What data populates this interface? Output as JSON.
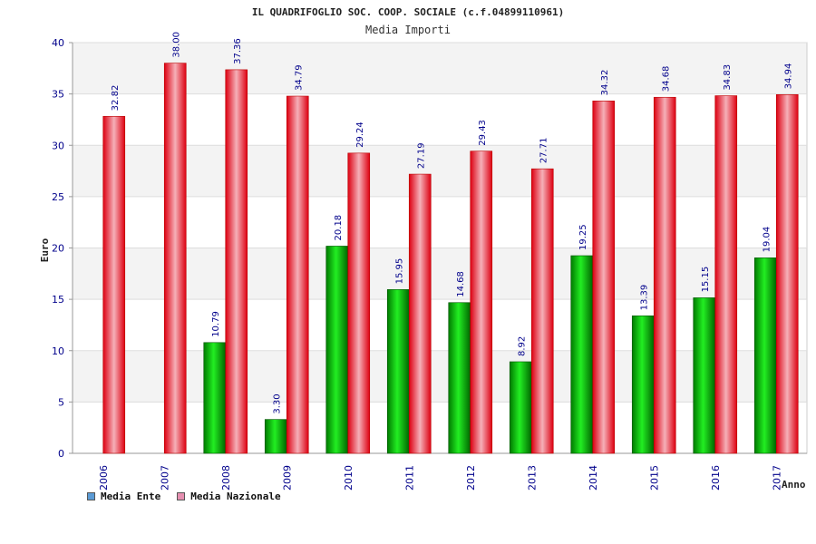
{
  "chart_data": {
    "type": "bar",
    "title": "IL QUADRIFOGLIO SOC. COOP. SOCIALE (c.f.04899110961)",
    "subtitle": "Media Importi",
    "xlabel": "Anno",
    "ylabel": "Euro",
    "ylim": [
      0,
      40
    ],
    "yticks": [
      "0",
      "5",
      "10",
      "15",
      "20",
      "25",
      "30",
      "35",
      "40"
    ],
    "categories": [
      "2006",
      "2007",
      "2008",
      "2009",
      "2010",
      "2011",
      "2012",
      "2013",
      "2014",
      "2015",
      "2016",
      "2017"
    ],
    "series": [
      {
        "name": "Media Ente",
        "color": "#00c000",
        "swatch": "#5b9bd5",
        "values": [
          null,
          null,
          10.79,
          3.3,
          20.18,
          15.95,
          14.68,
          8.92,
          19.25,
          13.39,
          15.15,
          19.04
        ],
        "labels": [
          "",
          "",
          "10.79",
          "3.30",
          "20.18",
          "15.95",
          "14.68",
          "8.92",
          "19.25",
          "13.39",
          "15.15",
          "19.04"
        ]
      },
      {
        "name": "Media Nazionale",
        "color": "#ee1122",
        "swatch": "#e58fb0",
        "values": [
          32.82,
          38.0,
          37.36,
          34.79,
          29.24,
          27.19,
          29.43,
          27.71,
          34.32,
          34.68,
          34.83,
          34.94
        ],
        "labels": [
          "32.82",
          "38.00",
          "37.36",
          "34.79",
          "29.24",
          "27.19",
          "29.43",
          "27.71",
          "34.32",
          "34.68",
          "34.83",
          "34.94"
        ]
      }
    ],
    "grid": true,
    "legend": "bottom-left"
  }
}
